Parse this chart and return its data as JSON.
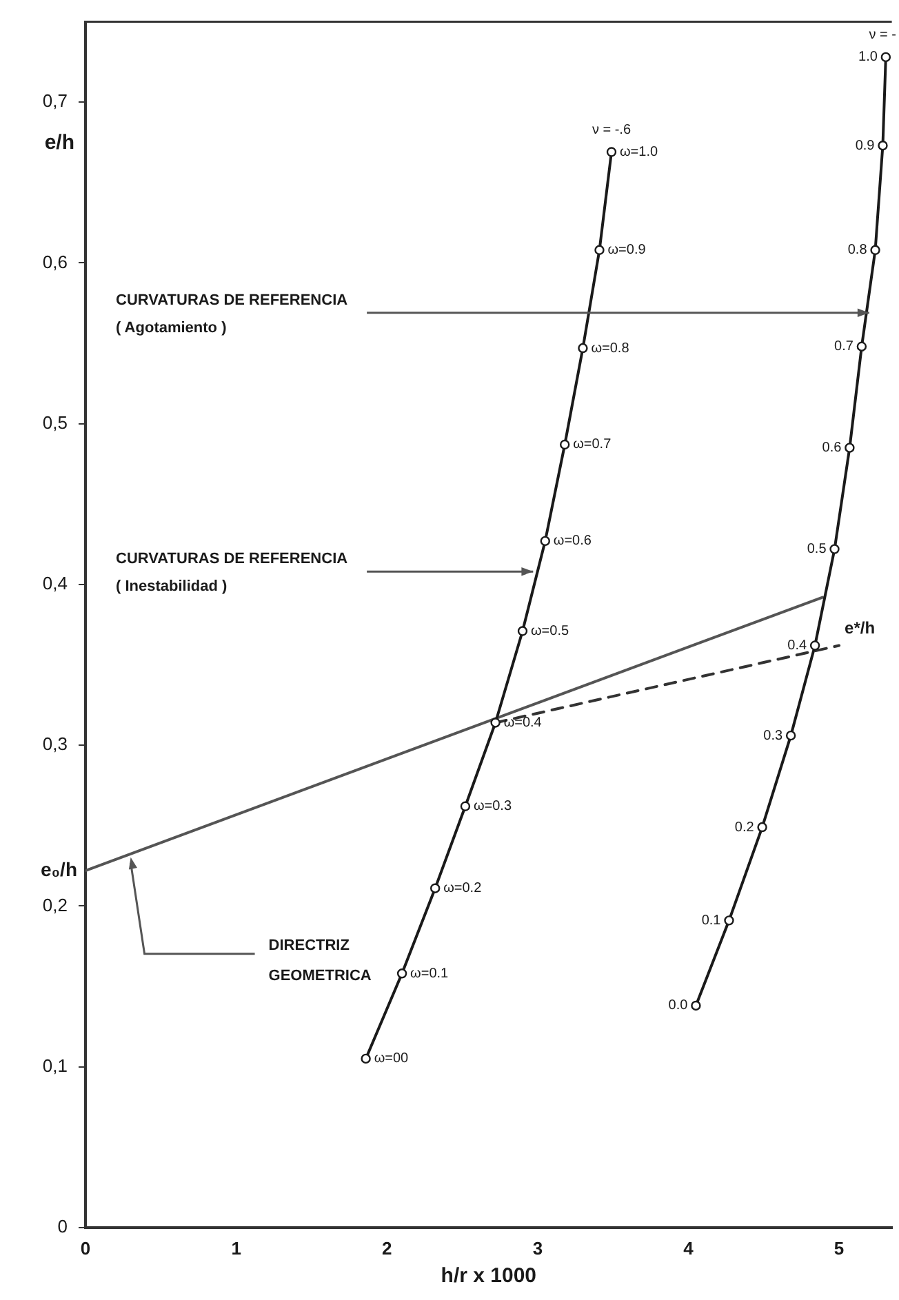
{
  "chart_data": {
    "type": "line",
    "xlabel": "h/r x 1000",
    "ylabel": "e/h",
    "xlim": [
      0,
      5.35
    ],
    "ylim": [
      0,
      0.75
    ],
    "xticks": [
      0,
      1,
      2,
      3,
      4,
      5
    ],
    "yticks": [
      0,
      {
        "value": 0.1,
        "label": "0,1"
      },
      {
        "value": 0.2,
        "label": "0,2"
      },
      {
        "value": 0.3,
        "label": "0,3"
      },
      {
        "value": 0.4,
        "label": "0,4"
      },
      {
        "value": 0.5,
        "label": "0,5"
      },
      {
        "value": 0.6,
        "label": "0,6"
      },
      {
        "value": 0.7,
        "label": "0,7"
      }
    ],
    "grid": false,
    "legend": false,
    "marker": "circle",
    "series": [
      {
        "color": "#1a1a1a",
        "x": [
          1.86,
          2.1,
          2.32,
          2.52,
          2.72,
          2.9,
          3.05,
          3.18,
          3.3,
          3.41,
          3.49
        ],
        "values": [
          0.105,
          0.158,
          0.211,
          0.262,
          0.314,
          0.371,
          0.427,
          0.487,
          0.547,
          0.608,
          0.669
        ]
      },
      {
        "color": "#1a1a1a",
        "x": [
          4.05,
          4.27,
          4.49,
          4.68,
          4.84,
          4.97,
          5.07,
          5.15,
          5.24,
          5.29,
          5.31
        ],
        "values": [
          0.138,
          0.191,
          0.249,
          0.306,
          0.362,
          0.422,
          0.485,
          0.548,
          0.608,
          0.673,
          0.728
        ]
      },
      {
        "color": "#555555",
        "x": [
          0,
          4.89
        ],
        "values": [
          0.222,
          0.392
        ],
        "marker": "none"
      },
      {
        "color": "#333333",
        "x": [
          2.72,
          5.0
        ],
        "values": [
          0.314,
          0.362
        ],
        "marker": "none",
        "line_style": "dashed"
      }
    ],
    "annotations": [
      {
        "text": "ω=00",
        "x": 1.86,
        "y": 0.105
      },
      {
        "text": "ω=0.1",
        "x": 2.1,
        "y": 0.158
      },
      {
        "text": "ω=0.2",
        "x": 2.32,
        "y": 0.211
      },
      {
        "text": "ω=0.3",
        "x": 2.52,
        "y": 0.262
      },
      {
        "text": "ω=0.4",
        "x": 2.72,
        "y": 0.314
      },
      {
        "text": "ω=0.5",
        "x": 2.9,
        "y": 0.371
      },
      {
        "text": "ω=0.6",
        "x": 3.05,
        "y": 0.427
      },
      {
        "text": "ω=0.7",
        "x": 3.18,
        "y": 0.487
      },
      {
        "text": "ω=0.8",
        "x": 3.3,
        "y": 0.547
      },
      {
        "text": "ω=0.9",
        "x": 3.41,
        "y": 0.608
      },
      {
        "text": "ω=1.0",
        "x": 3.49,
        "y": 0.669
      },
      {
        "text": "ν = -.6",
        "x": 3.49,
        "y": 0.669
      },
      {
        "text": "0.0",
        "x": 4.05,
        "y": 0.138
      },
      {
        "text": "0.1",
        "x": 4.27,
        "y": 0.191
      },
      {
        "text": "0.2",
        "x": 4.49,
        "y": 0.249
      },
      {
        "text": "0.3",
        "x": 4.68,
        "y": 0.306
      },
      {
        "text": "0.4",
        "x": 4.84,
        "y": 0.362
      },
      {
        "text": "0.5",
        "x": 4.97,
        "y": 0.422
      },
      {
        "text": "0.6",
        "x": 5.07,
        "y": 0.485
      },
      {
        "text": "0.7",
        "x": 5.15,
        "y": 0.548
      },
      {
        "text": "0.8",
        "x": 5.24,
        "y": 0.608
      },
      {
        "text": "0.9",
        "x": 5.29,
        "y": 0.673
      },
      {
        "text": "1.0",
        "x": 5.31,
        "y": 0.728
      },
      {
        "text": "ν = -",
        "x": 5.31,
        "y": 0.728
      },
      {
        "text": "e*/h",
        "x": 5.0,
        "y": 0.362
      },
      {
        "text": "e₀/h",
        "x": 0,
        "y": 0.222
      },
      {
        "text": "CURVATURAS DE REFERENCIA\n( Agotamiento )",
        "x": 5.2,
        "y": 0.569
      },
      {
        "text": "CURVATURAS DE REFERENCIA\n( Inestabilidad )",
        "x": 2.97,
        "y": 0.408
      },
      {
        "text": "DIRECTRIZ\nGEOMETRICA",
        "x": 0.3,
        "y": 0.232
      }
    ]
  }
}
